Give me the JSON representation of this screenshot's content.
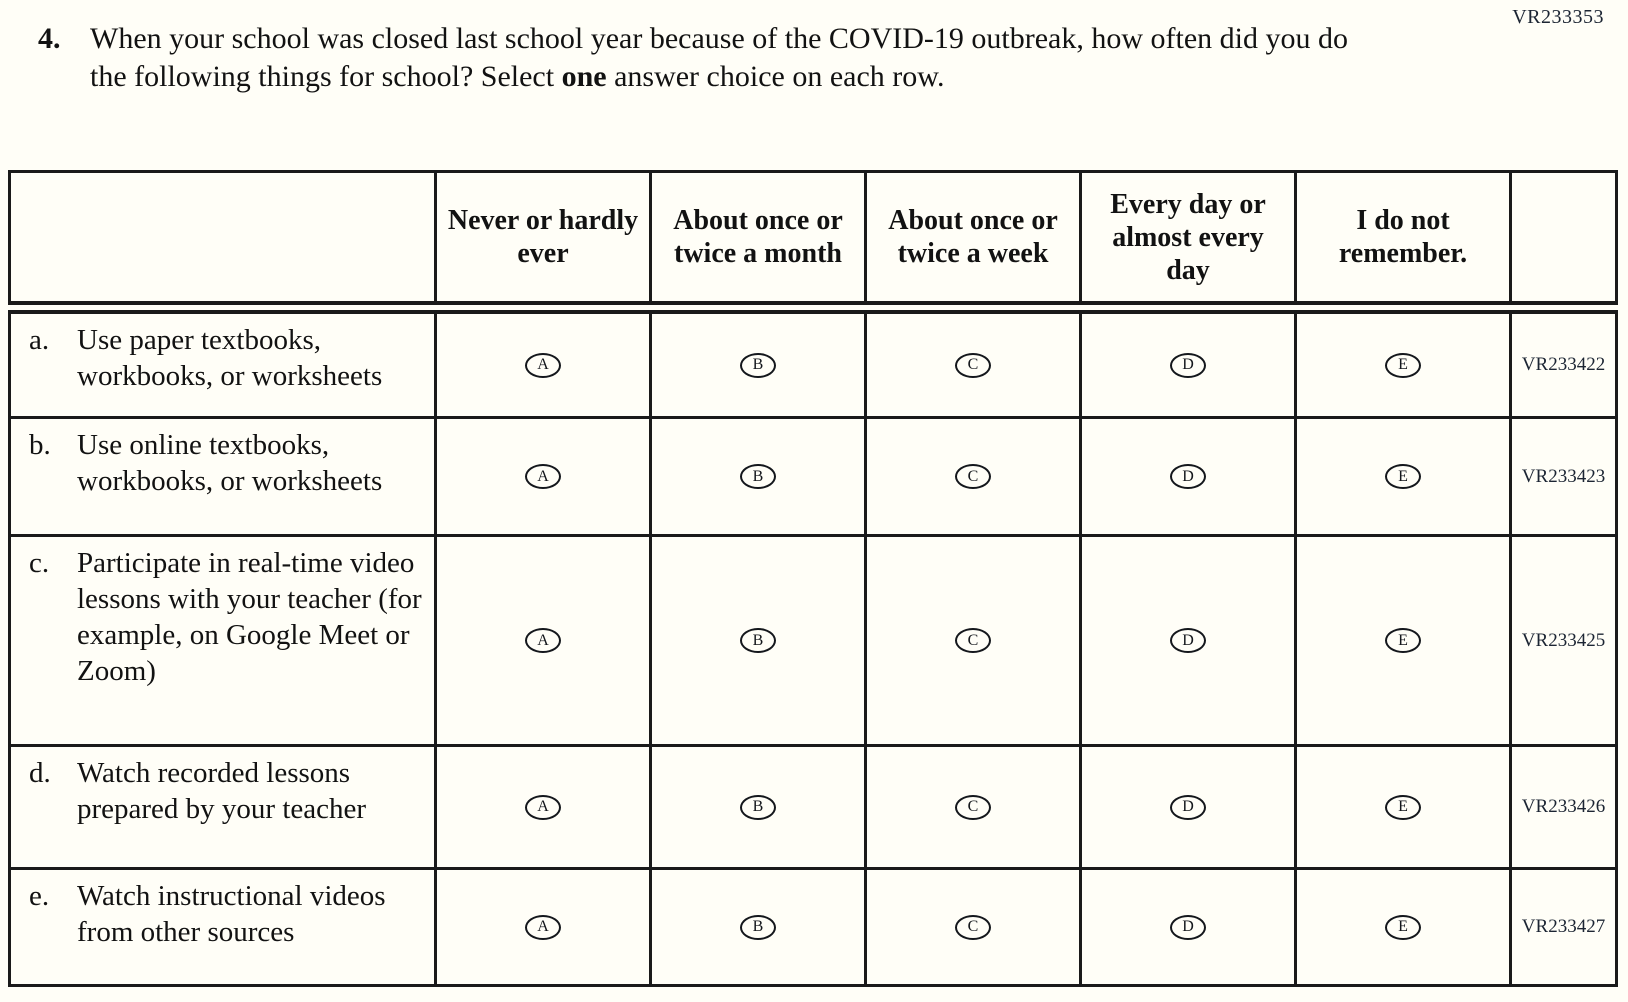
{
  "page_code": "VR233353",
  "question": {
    "number": "4.",
    "text_before_bold": "When your school was closed last school year because of the COVID-19 outbreak, how often did you do the following things for school? Select ",
    "bold_word": "one",
    "text_after_bold": " answer choice on each row."
  },
  "table": {
    "column_headers": [
      "Never or hardly ever",
      "About once or twice a month",
      "About once or twice a week",
      "Every day or almost every day",
      "I do not remember."
    ],
    "options": [
      "A",
      "B",
      "C",
      "D",
      "E"
    ],
    "rows": [
      {
        "letter": "a.",
        "label": "Use paper textbooks, workbooks, or worksheets",
        "code": "VR233422"
      },
      {
        "letter": "b.",
        "label": "Use online textbooks, workbooks, or worksheets",
        "code": "VR233423"
      },
      {
        "letter": "c.",
        "label": "Participate in real-time video lessons with your teacher (for example, on Google Meet or Zoom)",
        "code": "VR233425"
      },
      {
        "letter": "d.",
        "label": "Watch recorded lessons prepared by your teacher",
        "code": "VR233426"
      },
      {
        "letter": "e.",
        "label": "Watch instructional videos from other sources",
        "code": "VR233427"
      }
    ]
  },
  "colors": {
    "ink": "#1a1a1a",
    "code_ink": "#1c2533",
    "paper": "#fffef7"
  }
}
